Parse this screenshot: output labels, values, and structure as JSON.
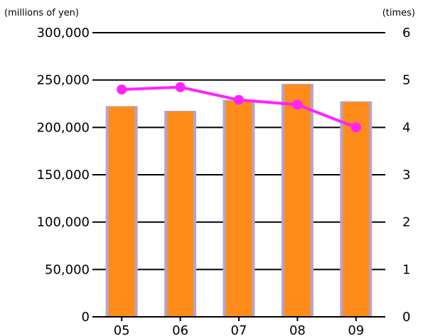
{
  "chart_data": {
    "type": "bar+line",
    "categories": [
      "05",
      "06",
      "07",
      "08",
      "09"
    ],
    "left_axis": {
      "unit_label": "(millions of yen)",
      "ylim": [
        0,
        300000
      ],
      "ticks": [
        "0",
        "50,000",
        "100,000",
        "150,000",
        "200,000",
        "250,000",
        "300,000"
      ]
    },
    "right_axis": {
      "unit_label": "(times)",
      "ylim": [
        0,
        6
      ],
      "ticks": [
        "0",
        "1",
        "2",
        "3",
        "4",
        "5",
        "6"
      ]
    },
    "series": [
      {
        "type": "bar",
        "axis": "left",
        "values": [
          222500,
          217500,
          229000,
          246000,
          227500
        ]
      },
      {
        "type": "line",
        "axis": "right",
        "values": [
          4.8,
          4.85,
          4.58,
          4.48,
          4.0
        ]
      }
    ],
    "grid": "horizontal",
    "colors": {
      "bar_fill": "#ff8c1a",
      "bar_shadow": "#b3a6cf",
      "line": "#ff22ff",
      "gridline": "#000000"
    }
  }
}
